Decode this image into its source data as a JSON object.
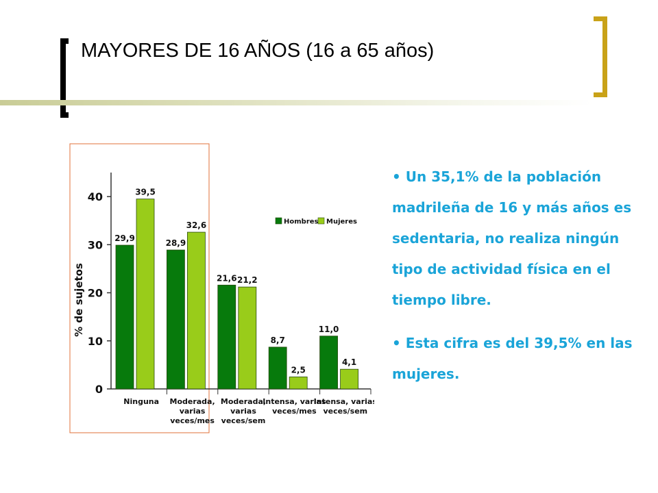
{
  "slide": {
    "title": "MAYORES DE 16 AÑOS (16 a 65 años)"
  },
  "bullets": [
    "• Un 35,1% de la población madrileña de 16 y más años es sedentaria, no realiza ningún tipo de actividad física en el tiempo libre.",
    "• Esta cifra es del 39,5% en las mujeres."
  ],
  "colors": {
    "hombres": "#077a0c",
    "mujeres": "#99cc1a",
    "bullet_text": "#1aa4d8",
    "highlight_box": "#e0703a",
    "bracket_right": "#c9a218"
  },
  "chart_data": {
    "type": "bar",
    "title": "",
    "xlabel": "",
    "ylabel": "% de sujetos",
    "ylim": [
      0,
      45
    ],
    "yticks": [
      0,
      10,
      20,
      30,
      40
    ],
    "categories": [
      [
        "Ninguna"
      ],
      [
        "Moderada,",
        "varias",
        "veces/mes"
      ],
      [
        "Moderada,",
        "varias",
        "veces/sem"
      ],
      [
        "Intensa, varias",
        "veces/mes"
      ],
      [
        "Intensa, varias",
        "veces/sem"
      ]
    ],
    "series": [
      {
        "name": "Hombres",
        "values": [
          29.9,
          28.9,
          21.6,
          8.7,
          11.0
        ],
        "labels": [
          "29,9",
          "28,9",
          "21,6",
          "8,7",
          "11,0"
        ]
      },
      {
        "name": "Mujeres",
        "values": [
          39.5,
          32.6,
          21.2,
          2.5,
          4.1
        ],
        "labels": [
          "39,5",
          "32,6",
          "21,2",
          "2,5",
          "4,1"
        ]
      }
    ],
    "legend_position": "top-right",
    "grid": false,
    "highlighted_category": "Ninguna"
  }
}
